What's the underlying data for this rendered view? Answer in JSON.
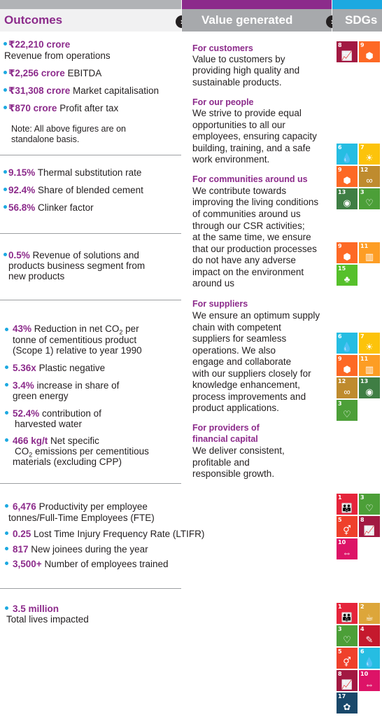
{
  "headers": {
    "outcomes": "Outcomes",
    "value_generated": "Value generated",
    "sdgs": "SDGs"
  },
  "colors": {
    "purple": "#8c2b8b",
    "cyan": "#1ca9e1",
    "grey": "#a7a9ac"
  },
  "outcomes": {
    "s1": {
      "revenue_value": "₹22,210 crore",
      "revenue_label": "Revenue from operations",
      "ebitda_value": "₹2,256 crore",
      "ebitda_label": "EBITDA",
      "mcap_value": "₹31,308 crore",
      "mcap_label": "Market capitalisation",
      "pat_value": "₹870 crore",
      "pat_label": "Profit after tax",
      "note_line1": "Note: All above figures are on",
      "note_line2": "standalone basis."
    },
    "s2": {
      "tsr_value": "9.15%",
      "tsr_label": "Thermal substitution rate",
      "blend_value": "92.4%",
      "blend_label": "Share of blended cement",
      "clinker_value": "56.8%",
      "clinker_label": "Clinker factor"
    },
    "s3": {
      "rev_value": "0.5%",
      "rev_line1": "Revenue of solutions and",
      "rev_line2": "products business segment from",
      "rev_line3": "new products"
    },
    "s4": {
      "co2_value": "43%",
      "co2_line1_pre": "Reduction in net CO",
      "co2_line1_sub": "2",
      "co2_line1_post": " per",
      "co2_line2": "tonne of cementitious product",
      "co2_line3": "(Scope 1) relative to year 1990",
      "plastic_value": "5.36x",
      "plastic_label": "Plastic negative",
      "green_value": "3.4%",
      "green_line1": "increase in share of",
      "green_line2": "green energy",
      "water_value": "52.4%",
      "water_line1": "contribution of",
      "water_line2": "harvested water",
      "emis_value": "466 kg/t",
      "emis_line1": "Net specific",
      "emis_line2_pre": "CO",
      "emis_line2_sub": "2",
      "emis_line2_post": " emissions per cementitious",
      "emis_line3": "materials (excluding CPP)"
    },
    "s5": {
      "prod_value": "6,476",
      "prod_line1": "Productivity per employee",
      "prod_line2": "tonnes/Full-Time Employees (FTE)",
      "ltifr_value": "0.25",
      "ltifr_label": "Lost Time Injury Frequency Rate (LTIFR)",
      "joinee_value": "817",
      "joinee_label": "New joinees during the year",
      "trained_value": "3,500+",
      "trained_label": "Number of employees trained"
    },
    "s6": {
      "lives_value": "3.5 million",
      "lives_label": "Total lives impacted"
    }
  },
  "value": {
    "customers_title": "For customers",
    "customers_lines": [
      "Value to customers by",
      "providing high quality and",
      "sustainable products."
    ],
    "people_title": "For our people",
    "people_lines": [
      "We strive to provide equal",
      "opportunities to all our",
      "employees, ensuring capacity",
      "building, training, and a safe",
      "work environment."
    ],
    "communities_title": "For communities around us",
    "communities_lines": [
      "We contribute towards",
      "improving the living conditions",
      "of communities around us",
      "through our CSR activities;",
      "at the same time, we ensure",
      "that our production processes",
      "do not have any adverse",
      "impact on the environment",
      "around us"
    ],
    "suppliers_title": "For suppliers",
    "suppliers_lines": [
      "We ensure an optimum supply",
      "chain with competent",
      "suppliers for seamless",
      "operations. We also",
      "engage and collaborate",
      "with our  suppliers closely for",
      "knowledge enhancement,",
      "process improvements and",
      "product applications."
    ],
    "capital_title1": "For providers of",
    "capital_title2": "financial capital",
    "capital_lines": [
      "We deliver consistent,",
      "profitable and",
      "responsible growth."
    ]
  },
  "sdg_icons": {
    "g1": "sdg-1-no-poverty-icon",
    "g2": "sdg-2-zero-hunger-icon",
    "g3": "sdg-3-good-health-icon",
    "g4": "sdg-4-quality-education-icon",
    "g5": "sdg-5-gender-equality-icon",
    "g6": "sdg-6-clean-water-icon",
    "g7": "sdg-7-affordable-clean-energy-icon",
    "g8": "sdg-8-decent-work-icon",
    "g9": "sdg-9-industry-innovation-icon",
    "g10": "sdg-10-reduced-inequalities-icon",
    "g11": "sdg-11-sustainable-cities-icon",
    "g12": "sdg-12-responsible-consumption-icon",
    "g13": "sdg-13-climate-action-icon",
    "g15": "sdg-15-life-on-land-icon",
    "g17": "sdg-17-partnerships-icon"
  }
}
